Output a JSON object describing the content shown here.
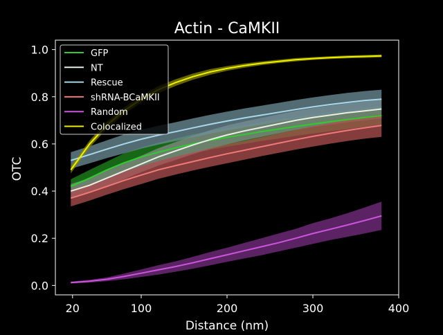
{
  "chart_data": {
    "type": "line",
    "title": "Actin - CaMKII",
    "xlabel": "Distance (nm)",
    "ylabel": "OTC",
    "xlim": [
      0,
      400
    ],
    "ylim": [
      -0.04,
      1.04
    ],
    "x_ticks": [
      {
        "value": 20,
        "label": "20"
      },
      {
        "value": 100,
        "label": "100"
      },
      {
        "value": 200,
        "label": "200"
      },
      {
        "value": 300,
        "label": "300"
      },
      {
        "value": 400,
        "label": "400"
      }
    ],
    "y_ticks": [
      {
        "value": 0.0,
        "label": "0.0"
      },
      {
        "value": 0.2,
        "label": "0.2"
      },
      {
        "value": 0.4,
        "label": "0.4"
      },
      {
        "value": 0.6,
        "label": "0.6"
      },
      {
        "value": 0.8,
        "label": "0.8"
      },
      {
        "value": 1.0,
        "label": "1.0"
      }
    ],
    "grid": false,
    "legend_position": "top-left",
    "x": [
      18,
      40,
      60,
      80,
      100,
      120,
      140,
      160,
      180,
      200,
      220,
      240,
      260,
      280,
      300,
      320,
      340,
      360,
      380
    ],
    "series": [
      {
        "name": "GFP",
        "color": "#2ecc2e",
        "band_color": "#1f8a1f",
        "values": [
          0.42,
          0.455,
          0.49,
          0.52,
          0.545,
          0.565,
          0.583,
          0.6,
          0.615,
          0.628,
          0.64,
          0.652,
          0.663,
          0.674,
          0.684,
          0.694,
          0.703,
          0.712,
          0.72
        ],
        "lower": [
          0.39,
          0.42,
          0.455,
          0.48,
          0.505,
          0.525,
          0.543,
          0.56,
          0.575,
          0.588,
          0.6,
          0.612,
          0.623,
          0.634,
          0.644,
          0.654,
          0.663,
          0.672,
          0.68
        ],
        "upper": [
          0.45,
          0.49,
          0.525,
          0.56,
          0.585,
          0.605,
          0.623,
          0.64,
          0.655,
          0.668,
          0.68,
          0.692,
          0.703,
          0.714,
          0.724,
          0.734,
          0.743,
          0.752,
          0.76
        ]
      },
      {
        "name": "NT",
        "color": "#e8f0e8",
        "band_color": "#8a8a8a",
        "values": [
          0.4,
          0.425,
          0.455,
          0.485,
          0.515,
          0.545,
          0.57,
          0.595,
          0.618,
          0.638,
          0.655,
          0.67,
          0.685,
          0.7,
          0.712,
          0.722,
          0.732,
          0.74,
          0.748
        ],
        "lower": [
          0.37,
          0.395,
          0.42,
          0.45,
          0.48,
          0.508,
          0.532,
          0.556,
          0.578,
          0.598,
          0.615,
          0.63,
          0.645,
          0.66,
          0.672,
          0.682,
          0.692,
          0.7,
          0.708
        ],
        "upper": [
          0.43,
          0.455,
          0.49,
          0.52,
          0.55,
          0.582,
          0.608,
          0.634,
          0.658,
          0.678,
          0.695,
          0.71,
          0.725,
          0.74,
          0.752,
          0.762,
          0.772,
          0.78,
          0.788
        ]
      },
      {
        "name": "Rescue",
        "color": "#a8d8ea",
        "band_color": "#6f8f99",
        "values": [
          0.53,
          0.555,
          0.578,
          0.6,
          0.62,
          0.637,
          0.652,
          0.668,
          0.683,
          0.697,
          0.71,
          0.722,
          0.734,
          0.746,
          0.757,
          0.767,
          0.776,
          0.784,
          0.79
        ],
        "lower": [
          0.495,
          0.518,
          0.54,
          0.56,
          0.58,
          0.597,
          0.612,
          0.628,
          0.643,
          0.657,
          0.67,
          0.682,
          0.694,
          0.706,
          0.717,
          0.727,
          0.736,
          0.744,
          0.75
        ],
        "upper": [
          0.565,
          0.59,
          0.615,
          0.64,
          0.66,
          0.677,
          0.692,
          0.708,
          0.723,
          0.737,
          0.75,
          0.762,
          0.774,
          0.786,
          0.797,
          0.807,
          0.816,
          0.824,
          0.83
        ]
      },
      {
        "name": "shRNA-BCaMKII",
        "color": "#f07a7a",
        "band_color": "#b05050",
        "values": [
          0.37,
          0.395,
          0.42,
          0.445,
          0.468,
          0.49,
          0.508,
          0.525,
          0.542,
          0.558,
          0.573,
          0.588,
          0.603,
          0.618,
          0.632,
          0.645,
          0.657,
          0.668,
          0.678
        ],
        "lower": [
          0.335,
          0.36,
          0.385,
          0.408,
          0.43,
          0.452,
          0.47,
          0.487,
          0.503,
          0.518,
          0.533,
          0.548,
          0.562,
          0.576,
          0.589,
          0.601,
          0.612,
          0.622,
          0.63
        ],
        "upper": [
          0.405,
          0.43,
          0.455,
          0.482,
          0.506,
          0.528,
          0.546,
          0.563,
          0.581,
          0.598,
          0.613,
          0.628,
          0.644,
          0.66,
          0.675,
          0.689,
          0.702,
          0.714,
          0.726
        ]
      },
      {
        "name": "Random",
        "color": "#cc55dd",
        "band_color": "#7a2f85",
        "values": [
          0.012,
          0.018,
          0.026,
          0.038,
          0.052,
          0.066,
          0.08,
          0.096,
          0.113,
          0.13,
          0.147,
          0.164,
          0.181,
          0.2,
          0.22,
          0.238,
          0.256,
          0.275,
          0.295
        ],
        "lower": [
          0.008,
          0.012,
          0.018,
          0.026,
          0.036,
          0.046,
          0.058,
          0.071,
          0.085,
          0.1,
          0.114,
          0.128,
          0.144,
          0.16,
          0.176,
          0.192,
          0.206,
          0.22,
          0.235
        ],
        "upper": [
          0.016,
          0.024,
          0.034,
          0.05,
          0.068,
          0.086,
          0.102,
          0.121,
          0.141,
          0.16,
          0.18,
          0.2,
          0.22,
          0.24,
          0.264,
          0.284,
          0.306,
          0.33,
          0.355
        ]
      },
      {
        "name": "Colocalized",
        "color": "#f0f000",
        "band_color": "#8a8a00",
        "values": [
          0.49,
          0.6,
          0.68,
          0.74,
          0.79,
          0.83,
          0.86,
          0.885,
          0.905,
          0.92,
          0.932,
          0.942,
          0.95,
          0.957,
          0.962,
          0.966,
          0.969,
          0.971,
          0.973
        ],
        "lower": [
          0.475,
          0.585,
          0.665,
          0.725,
          0.775,
          0.815,
          0.846,
          0.872,
          0.893,
          0.91,
          0.923,
          0.934,
          0.943,
          0.95,
          0.956,
          0.96,
          0.963,
          0.965,
          0.967
        ],
        "upper": [
          0.505,
          0.615,
          0.695,
          0.755,
          0.805,
          0.845,
          0.874,
          0.898,
          0.917,
          0.93,
          0.941,
          0.95,
          0.957,
          0.964,
          0.968,
          0.972,
          0.975,
          0.977,
          0.979
        ]
      }
    ]
  }
}
